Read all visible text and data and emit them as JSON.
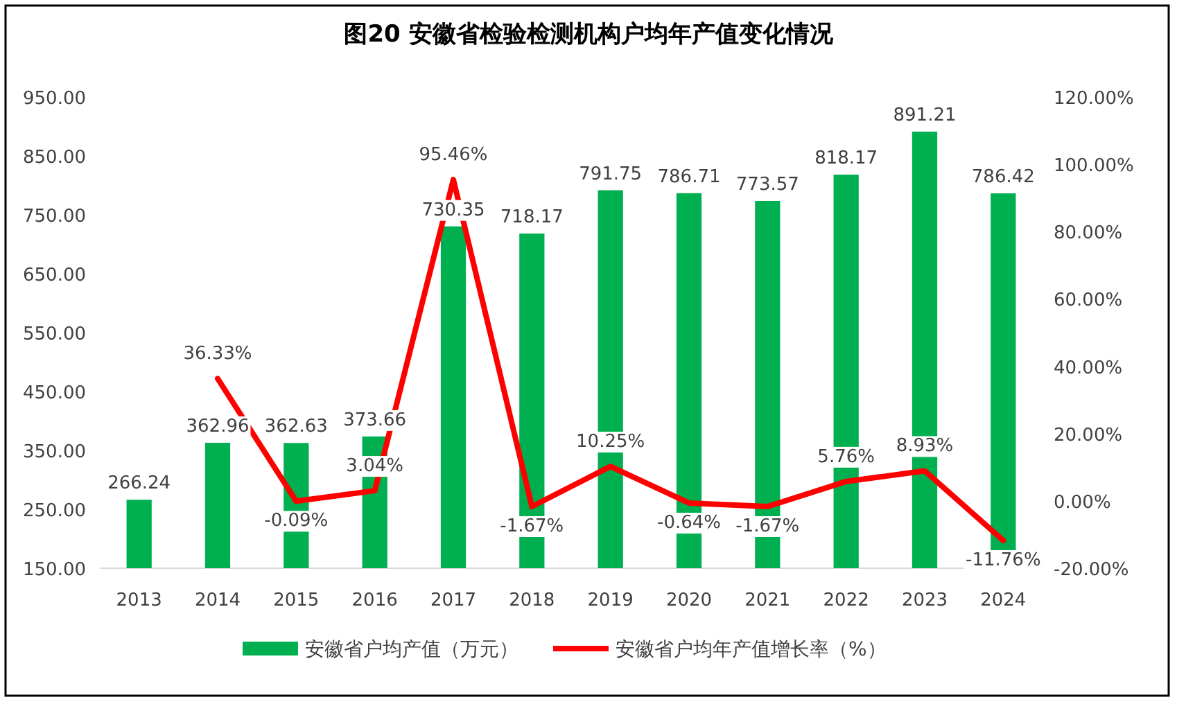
{
  "chart_data": {
    "type": "bar",
    "title": "图20  安徽省检验检测机构户均年产值变化情况",
    "categories": [
      "2013",
      "2014",
      "2015",
      "2016",
      "2017",
      "2018",
      "2019",
      "2020",
      "2021",
      "2022",
      "2023",
      "2024"
    ],
    "series": [
      {
        "name": "安徽省户均产值（万元）",
        "color": "#00b050",
        "values": [
          266.24,
          362.96,
          362.63,
          373.66,
          730.35,
          718.17,
          791.75,
          786.71,
          773.57,
          818.17,
          891.21,
          786.42
        ],
        "value_labels": [
          "266.24",
          "362.96",
          "362.63",
          "373.66",
          "730.35",
          "718.17",
          "791.75",
          "786.71",
          "773.57",
          "818.17",
          "891.21",
          "786.42"
        ]
      },
      {
        "name": "安徽省户均年产值增长率（%）",
        "type": "line",
        "axis": "y2",
        "color": "#ff0000",
        "values": [
          null,
          36.33,
          -0.09,
          3.04,
          95.46,
          -1.67,
          10.25,
          -0.64,
          -1.67,
          5.76,
          8.93,
          -11.76
        ],
        "value_labels": [
          null,
          "36.33%",
          "-0.09%",
          "3.04%",
          "95.46%",
          "-1.67%",
          "10.25%",
          "-0.64%",
          "-1.67%",
          "5.76%",
          "8.93%",
          "-11.76%"
        ]
      }
    ],
    "ylim": [
      150,
      950
    ],
    "yticks": [
      {
        "value": 150,
        "label": "150.00"
      },
      {
        "value": 250,
        "label": "250.00"
      },
      {
        "value": 350,
        "label": "350.00"
      },
      {
        "value": 450,
        "label": "450.00"
      },
      {
        "value": 550,
        "label": "550.00"
      },
      {
        "value": 650,
        "label": "650.00"
      },
      {
        "value": 750,
        "label": "750.00"
      },
      {
        "value": 850,
        "label": "850.00"
      },
      {
        "value": 950,
        "label": "950.00"
      }
    ],
    "y2lim": [
      -20,
      120
    ],
    "y2ticks": [
      {
        "value": -20,
        "label": "-20.00%"
      },
      {
        "value": 0,
        "label": "0.00%"
      },
      {
        "value": 20,
        "label": "20.00%"
      },
      {
        "value": 40,
        "label": "40.00%"
      },
      {
        "value": 60,
        "label": "60.00%"
      },
      {
        "value": 80,
        "label": "80.00%"
      },
      {
        "value": 100,
        "label": "100.00%"
      },
      {
        "value": 120,
        "label": "120.00%"
      }
    ],
    "legend": "bottom"
  }
}
